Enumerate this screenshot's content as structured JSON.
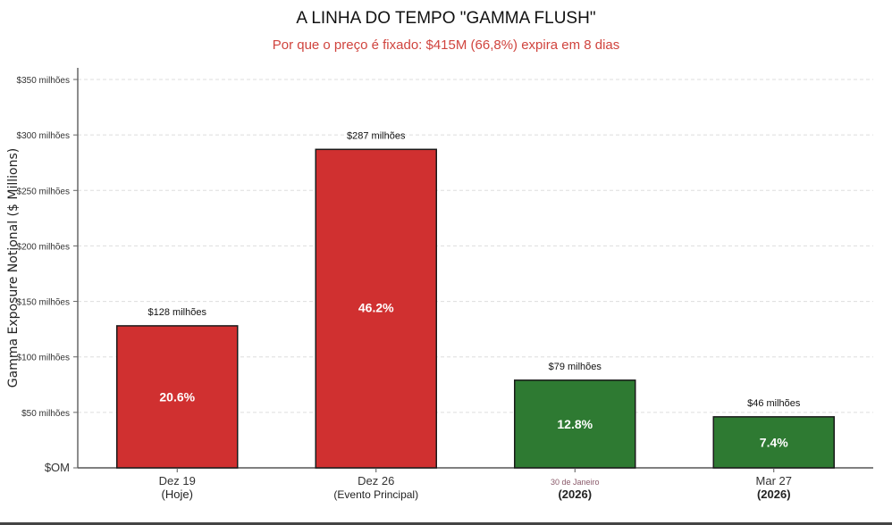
{
  "chart_data": {
    "type": "bar",
    "title": "A LINHA DO TEMPO \"GAMMA FLUSH\"",
    "subtitle": "Por que o preço é fixado: $415M (66,8%) expira em 8 dias",
    "ylabel": "Gamma Exposure Notional ($ Millions)",
    "xlabel": "",
    "ylim": [
      0,
      350
    ],
    "yticks": [
      0,
      50,
      100,
      150,
      200,
      250,
      300,
      350
    ],
    "ytick_labels": [
      "$OM",
      "$50 milhões",
      "$100 milhões",
      "$150 milhões",
      "$200 milhões",
      "$250 milhões",
      "$300 milhões",
      "$350 milhões"
    ],
    "grid": true,
    "categories": [
      "Dez 19",
      "Dez 26",
      "30 de Janeiro",
      "Mar 27"
    ],
    "category_sublabels": [
      "(Hoje)",
      "(Evento Principal)",
      "(2026)",
      "(2026)"
    ],
    "values": [
      128,
      287,
      79,
      46
    ],
    "value_labels": [
      "$128 milhões",
      "$287 milhões",
      "$79 milhões",
      "$46 milhões"
    ],
    "percent_labels": [
      "20.6%",
      "46.2%",
      "12.8%",
      "7.4%"
    ],
    "colors": [
      "#d03030",
      "#d03030",
      "#2e7a32",
      "#2e7a32"
    ]
  }
}
